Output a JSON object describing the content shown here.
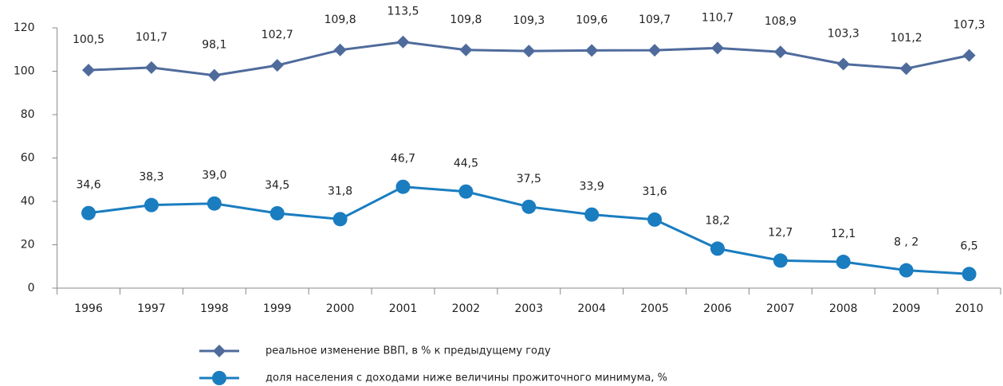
{
  "chart_data": {
    "type": "line",
    "categories": [
      "1996",
      "1997",
      "1998",
      "1999",
      "2000",
      "2001",
      "2002",
      "2003",
      "2004",
      "2005",
      "2006",
      "2007",
      "2008",
      "2009",
      "2010"
    ],
    "series": [
      {
        "name": "реальное изменение ВВП, в % к предыдущему году",
        "color": "#4f6b9c",
        "marker": "diamond",
        "values": [
          100.5,
          101.7,
          98.1,
          102.7,
          109.8,
          113.5,
          109.8,
          109.3,
          109.6,
          109.7,
          110.7,
          108.9,
          103.3,
          101.2,
          107.3
        ],
        "value_labels": [
          "100,5",
          "101,7",
          "98,1",
          "102,7",
          "109,8",
          "113,5",
          "109,8",
          "109,3",
          "109,6",
          "109,7",
          "110,7",
          "108,9",
          "103,3",
          "101,2",
          "107,3"
        ]
      },
      {
        "name": "доля населения с доходами ниже величины прожиточного минимума, %",
        "color": "#1a7dc0",
        "marker": "circle",
        "values": [
          34.6,
          38.3,
          39.0,
          34.5,
          31.8,
          46.7,
          44.5,
          37.5,
          33.9,
          31.6,
          18.2,
          12.7,
          12.1,
          8.2,
          6.5
        ],
        "value_labels": [
          "34,6",
          "38,3",
          "39,0",
          "34,5",
          "31,8",
          "46,7",
          "44,5",
          "37,5",
          "33,9",
          "31,6",
          "18,2",
          "12,7",
          "12,1",
          "8 , 2",
          "6,5"
        ]
      }
    ],
    "ylim": [
      0,
      120
    ],
    "yticks": [
      0,
      20,
      40,
      60,
      80,
      100,
      120
    ],
    "grid": false
  }
}
